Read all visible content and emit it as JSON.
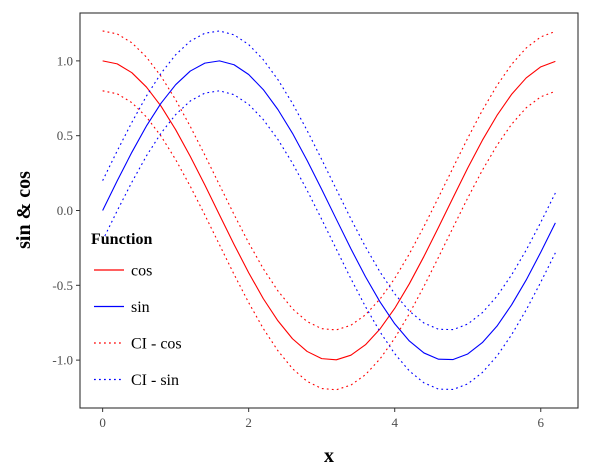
{
  "chart_data": {
    "type": "line",
    "title": "",
    "xlabel": "x",
    "ylabel": "sin & cos",
    "xlim": [
      -0.31,
      6.51
    ],
    "ylim": [
      -1.32,
      1.32
    ],
    "x_ticks": [
      0,
      2,
      4,
      6
    ],
    "x_tick_labels": [
      "0",
      "2",
      "4",
      "6"
    ],
    "y_ticks": [
      -1.0,
      -0.5,
      0.0,
      0.5,
      1.0
    ],
    "y_tick_labels": [
      "-1.0",
      "-0.5",
      "0.0",
      "0.5",
      "1.0"
    ],
    "grid": false,
    "legend": {
      "title": "Function",
      "placement": "inside-bottom-left",
      "entries": [
        {
          "label": "cos",
          "color": "#ff0000",
          "style": "solid"
        },
        {
          "label": "sin",
          "color": "#0000ff",
          "style": "solid"
        },
        {
          "label": "CI - cos",
          "color": "#ff0000",
          "style": "dotted"
        },
        {
          "label": "CI - sin",
          "color": "#0000ff",
          "style": "dotted"
        }
      ]
    },
    "x": [
      0.0,
      0.2,
      0.4,
      0.6,
      0.8,
      1.0,
      1.2,
      1.4,
      1.6,
      1.8,
      2.0,
      2.2,
      2.4,
      2.6,
      2.8,
      3.0,
      3.2,
      3.4,
      3.6,
      3.8,
      4.0,
      4.2,
      4.4,
      4.6,
      4.8,
      5.0,
      5.2,
      5.4,
      5.6,
      5.8,
      6.0,
      6.2
    ],
    "series": [
      {
        "color": "#ff0000",
        "style": "solid",
        "values": [
          1.0,
          0.98,
          0.921,
          0.825,
          0.697,
          0.54,
          0.362,
          0.17,
          -0.029,
          -0.227,
          -0.416,
          -0.589,
          -0.737,
          -0.857,
          -0.942,
          -0.99,
          -0.998,
          -0.967,
          -0.897,
          -0.791,
          -0.654,
          -0.49,
          -0.307,
          -0.112,
          0.087,
          0.284,
          0.469,
          0.635,
          0.776,
          0.886,
          0.96,
          0.997
        ]
      },
      {
        "color": "#0000ff",
        "style": "solid",
        "values": [
          0.0,
          0.199,
          0.389,
          0.565,
          0.717,
          0.841,
          0.932,
          0.985,
          1.0,
          0.974,
          0.909,
          0.808,
          0.675,
          0.516,
          0.335,
          0.141,
          -0.058,
          -0.256,
          -0.443,
          -0.612,
          -0.757,
          -0.872,
          -0.952,
          -0.994,
          -0.996,
          -0.959,
          -0.883,
          -0.773,
          -0.631,
          -0.465,
          -0.279,
          -0.083
        ]
      },
      {
        "color": "#ff0000",
        "style": "dotted",
        "values": [
          1.2,
          1.18,
          1.121,
          1.025,
          0.897,
          0.74,
          0.562,
          0.37,
          0.171,
          -0.027,
          -0.216,
          -0.389,
          -0.537,
          -0.657,
          -0.742,
          -0.79,
          -0.798,
          -0.767,
          -0.697,
          -0.591,
          -0.454,
          -0.29,
          -0.107,
          0.088,
          0.287,
          0.484,
          0.669,
          0.835,
          0.976,
          1.086,
          1.16,
          1.197
        ]
      },
      {
        "color": "#ff0000",
        "style": "dotted",
        "values": [
          0.8,
          0.78,
          0.721,
          0.625,
          0.497,
          0.34,
          0.162,
          -0.03,
          -0.229,
          -0.427,
          -0.616,
          -0.789,
          -0.937,
          -1.057,
          -1.142,
          -1.19,
          -1.198,
          -1.167,
          -1.097,
          -0.991,
          -0.854,
          -0.69,
          -0.507,
          -0.312,
          -0.113,
          0.084,
          0.269,
          0.435,
          0.576,
          0.686,
          0.76,
          0.797
        ]
      },
      {
        "color": "#0000ff",
        "style": "dotted",
        "values": [
          0.2,
          0.399,
          0.589,
          0.765,
          0.917,
          1.041,
          1.132,
          1.185,
          1.2,
          1.174,
          1.109,
          1.008,
          0.875,
          0.716,
          0.535,
          0.341,
          0.142,
          -0.056,
          -0.243,
          -0.412,
          -0.557,
          -0.672,
          -0.752,
          -0.794,
          -0.796,
          -0.759,
          -0.683,
          -0.573,
          -0.431,
          -0.265,
          -0.079,
          0.117
        ]
      },
      {
        "color": "#0000ff",
        "style": "dotted",
        "values": [
          -0.2,
          -0.001,
          0.189,
          0.365,
          0.517,
          0.641,
          0.732,
          0.785,
          0.8,
          0.774,
          0.709,
          0.608,
          0.475,
          0.316,
          0.135,
          -0.059,
          -0.258,
          -0.456,
          -0.643,
          -0.812,
          -0.957,
          -1.072,
          -1.152,
          -1.194,
          -1.196,
          -1.159,
          -1.083,
          -0.973,
          -0.831,
          -0.665,
          -0.479,
          -0.283
        ]
      }
    ]
  }
}
